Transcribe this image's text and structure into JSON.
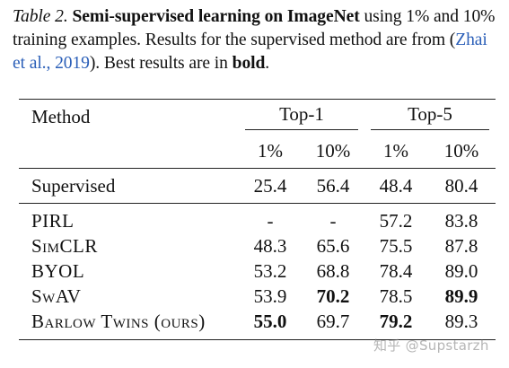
{
  "caption": {
    "label": "Table 2.",
    "title": "Semi-supervised learning on ImageNet",
    "text1": " using 1% and 10% training examples. Results for the supervised method are from (",
    "cite": "Zhai et al., 2019",
    "text2": "). Best results are in ",
    "bold_word": "bold",
    "end": "."
  },
  "table": {
    "method_header": "Method",
    "groups": [
      "Top-1",
      "Top-5"
    ],
    "subheaders": [
      "1%",
      "10%",
      "1%",
      "10%"
    ],
    "supervised": {
      "method": "Supervised",
      "values": [
        "25.4",
        "56.4",
        "48.4",
        "80.4"
      ]
    },
    "rows": [
      {
        "method": "PIRL",
        "values": [
          "-",
          "-",
          "57.2",
          "83.8"
        ]
      },
      {
        "method": "SimCLR",
        "values": [
          "48.3",
          "65.6",
          "75.5",
          "87.8"
        ]
      },
      {
        "method": "BYOL",
        "values": [
          "53.2",
          "68.8",
          "78.4",
          "89.0"
        ]
      },
      {
        "method": "SwAV",
        "values": [
          "53.9",
          "70.2",
          "78.5",
          "89.9"
        ]
      },
      {
        "method": "Barlow Twins (ours)",
        "values": [
          "55.0",
          "69.7",
          "79.2",
          "89.3"
        ]
      }
    ]
  },
  "watermark": "知乎 @Supstarzh"
}
